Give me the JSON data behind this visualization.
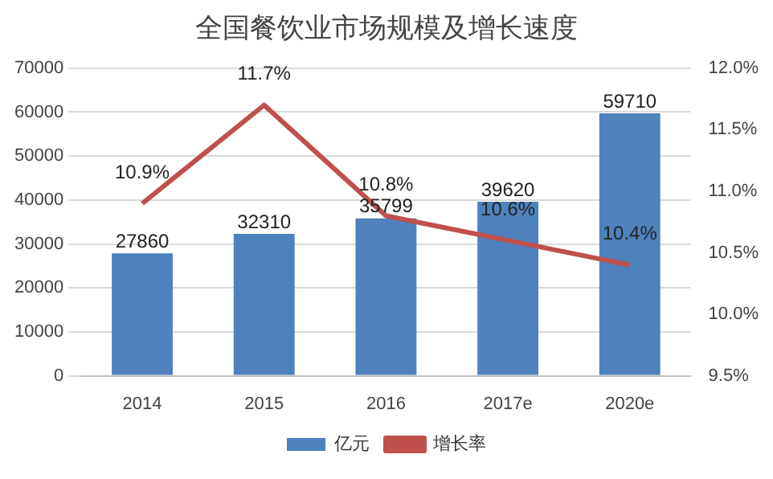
{
  "chart_data": {
    "type": "bar",
    "title": "全国餐饮业市场规模及增长速度",
    "categories": [
      "2014",
      "2015",
      "2016",
      "2017e",
      "2020e"
    ],
    "series": [
      {
        "name": "亿元",
        "color": "#4f81bd",
        "values": [
          27860,
          32310,
          35799,
          39620,
          59710
        ],
        "value_labels": [
          "27860",
          "32310",
          "35799",
          "39620",
          "59710"
        ]
      },
      {
        "name": "增长率",
        "type": "line",
        "axis": "y2",
        "color": "#c0504d",
        "values": [
          10.9,
          11.7,
          10.8,
          10.6,
          10.4
        ],
        "value_labels": [
          "10.9%",
          "11.7%",
          "10.8%",
          "10.6%",
          "10.4%"
        ],
        "marker": "none"
      }
    ],
    "ylim": [
      0,
      70000
    ],
    "yticks": [
      0,
      10000,
      20000,
      30000,
      40000,
      50000,
      60000,
      70000
    ],
    "y2lim": [
      9.5,
      12.0
    ],
    "y2ticks": [
      {
        "value": 9.5,
        "label": "9.5%"
      },
      {
        "value": 10.0,
        "label": "10.0%"
      },
      {
        "value": 10.5,
        "label": "10.5%"
      },
      {
        "value": 11.0,
        "label": "11.0%"
      },
      {
        "value": 11.5,
        "label": "11.5%"
      },
      {
        "value": 12.0,
        "label": "12.0%"
      }
    ],
    "grid": "y",
    "legend": "bottom"
  }
}
